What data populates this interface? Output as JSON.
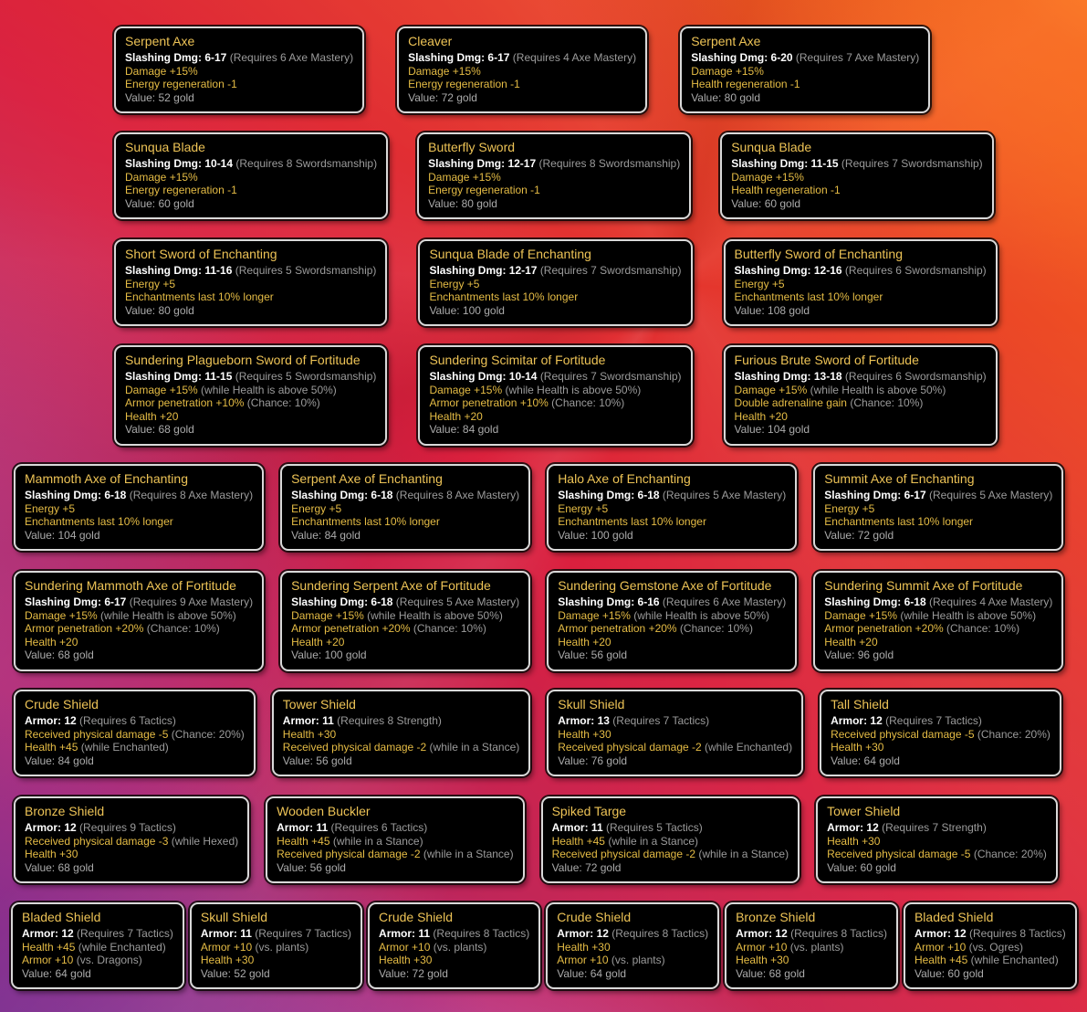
{
  "colors": {
    "item_name": "#edc356",
    "stat_text": "#ffffff",
    "requirement_text": "#9b9b9b",
    "bonus_text": "#e5bc45",
    "note_text": "#9b9b9b",
    "value_text": "#ababab",
    "card_background": "#000000",
    "card_border": "#d9d9d9",
    "bg_orange_bright": "#ff9023",
    "bg_orange": "#f8681c",
    "bg_red": "#da1f3e",
    "bg_magenta": "#c23e8e",
    "bg_purple": "#50257e"
  },
  "rows": [
    {
      "items": [
        {
          "name": "Serpent Axe",
          "stat": "Slashing Dmg: 6-17",
          "requirement": "(Requires 6 Axe Mastery)",
          "bonuses": [
            {
              "text": "Damage +15%",
              "note": ""
            },
            {
              "text": "Energy regeneration -1",
              "note": ""
            }
          ],
          "value": "Value: 52 gold"
        },
        {
          "name": "Cleaver",
          "stat": "Slashing Dmg: 6-17",
          "requirement": "(Requires 4 Axe Mastery)",
          "bonuses": [
            {
              "text": "Damage +15%",
              "note": ""
            },
            {
              "text": "Energy regeneration -1",
              "note": ""
            }
          ],
          "value": "Value: 72 gold"
        },
        {
          "name": "Serpent Axe",
          "stat": "Slashing Dmg: 6-20",
          "requirement": "(Requires 7 Axe Mastery)",
          "bonuses": [
            {
              "text": "Damage +15%",
              "note": ""
            },
            {
              "text": "Health regeneration -1",
              "note": ""
            }
          ],
          "value": "Value: 80 gold"
        }
      ]
    },
    {
      "items": [
        {
          "name": "Sunqua Blade",
          "stat": "Slashing Dmg: 10-14",
          "requirement": "(Requires 8 Swordsmanship)",
          "bonuses": [
            {
              "text": "Damage +15%",
              "note": ""
            },
            {
              "text": "Energy regeneration -1",
              "note": ""
            }
          ],
          "value": "Value: 60 gold"
        },
        {
          "name": "Butterfly Sword",
          "stat": "Slashing Dmg: 12-17",
          "requirement": "(Requires 8 Swordsmanship)",
          "bonuses": [
            {
              "text": "Damage +15%",
              "note": ""
            },
            {
              "text": "Energy regeneration -1",
              "note": ""
            }
          ],
          "value": "Value: 80 gold"
        },
        {
          "name": "Sunqua Blade",
          "stat": "Slashing Dmg: 11-15",
          "requirement": "(Requires 7 Swordsmanship)",
          "bonuses": [
            {
              "text": "Damage +15%",
              "note": ""
            },
            {
              "text": "Health regeneration -1",
              "note": ""
            }
          ],
          "value": "Value: 60 gold"
        }
      ]
    },
    {
      "items": [
        {
          "name": "Short Sword of Enchanting",
          "stat": "Slashing Dmg: 11-16",
          "requirement": "(Requires 5 Swordsmanship)",
          "bonuses": [
            {
              "text": "Energy +5",
              "note": ""
            },
            {
              "text": "Enchantments last 10% longer",
              "note": ""
            }
          ],
          "value": "Value: 80 gold"
        },
        {
          "name": "Sunqua Blade of Enchanting",
          "stat": "Slashing Dmg: 12-17",
          "requirement": "(Requires 7 Swordsmanship)",
          "bonuses": [
            {
              "text": "Energy +5",
              "note": ""
            },
            {
              "text": "Enchantments last 10% longer",
              "note": ""
            }
          ],
          "value": "Value: 100 gold"
        },
        {
          "name": "Butterfly Sword of Enchanting",
          "stat": "Slashing Dmg: 12-16",
          "requirement": "(Requires 6 Swordsmanship)",
          "bonuses": [
            {
              "text": "Energy +5",
              "note": ""
            },
            {
              "text": "Enchantments last 10% longer",
              "note": ""
            }
          ],
          "value": "Value: 108 gold"
        }
      ]
    },
    {
      "items": [
        {
          "name": "Sundering Plagueborn Sword of Fortitude",
          "stat": "Slashing Dmg: 11-15",
          "requirement": "(Requires 5 Swordsmanship)",
          "bonuses": [
            {
              "text": "Damage +15%",
              "note": "(while Health is above 50%)"
            },
            {
              "text": "Armor penetration +10%",
              "note": "(Chance: 10%)"
            },
            {
              "text": "Health +20",
              "note": ""
            }
          ],
          "value": "Value: 68 gold"
        },
        {
          "name": "Sundering Scimitar of Fortitude",
          "stat": "Slashing Dmg: 10-14",
          "requirement": "(Requires 7 Swordsmanship)",
          "bonuses": [
            {
              "text": "Damage +15%",
              "note": "(while Health is above 50%)"
            },
            {
              "text": "Armor penetration +10%",
              "note": "(Chance: 10%)"
            },
            {
              "text": "Health +20",
              "note": ""
            }
          ],
          "value": "Value: 84 gold"
        },
        {
          "name": "Furious Brute Sword of Fortitude",
          "stat": "Slashing Dmg: 13-18",
          "requirement": "(Requires 6 Swordsmanship)",
          "bonuses": [
            {
              "text": "Damage +15%",
              "note": "(while Health is above 50%)"
            },
            {
              "text": "Double adrenaline gain",
              "note": "(Chance: 10%)"
            },
            {
              "text": "Health +20",
              "note": ""
            }
          ],
          "value": "Value: 104 gold"
        }
      ]
    },
    {
      "items": [
        {
          "name": "Mammoth Axe of Enchanting",
          "stat": "Slashing Dmg: 6-18",
          "requirement": "(Requires 8 Axe Mastery)",
          "bonuses": [
            {
              "text": "Energy +5",
              "note": ""
            },
            {
              "text": "Enchantments last 10% longer",
              "note": ""
            }
          ],
          "value": "Value: 104 gold"
        },
        {
          "name": "Serpent Axe of Enchanting",
          "stat": "Slashing Dmg: 6-18",
          "requirement": "(Requires 8 Axe Mastery)",
          "bonuses": [
            {
              "text": "Energy +5",
              "note": ""
            },
            {
              "text": "Enchantments last 10% longer",
              "note": ""
            }
          ],
          "value": "Value: 84 gold"
        },
        {
          "name": "Halo Axe of Enchanting",
          "stat": "Slashing Dmg: 6-18",
          "requirement": "(Requires 5 Axe Mastery)",
          "bonuses": [
            {
              "text": "Energy +5",
              "note": ""
            },
            {
              "text": "Enchantments last 10% longer",
              "note": ""
            }
          ],
          "value": "Value: 100 gold"
        },
        {
          "name": "Summit Axe of Enchanting",
          "stat": "Slashing Dmg: 6-17",
          "requirement": "(Requires 5 Axe Mastery)",
          "bonuses": [
            {
              "text": "Energy +5",
              "note": ""
            },
            {
              "text": "Enchantments last 10% longer",
              "note": ""
            }
          ],
          "value": "Value: 72 gold"
        }
      ]
    },
    {
      "items": [
        {
          "name": "Sundering Mammoth Axe of Fortitude",
          "stat": "Slashing Dmg: 6-17",
          "requirement": "(Requires 9 Axe Mastery)",
          "bonuses": [
            {
              "text": "Damage +15%",
              "note": "(while Health is above 50%)"
            },
            {
              "text": "Armor penetration +20%",
              "note": "(Chance: 10%)"
            },
            {
              "text": "Health +20",
              "note": ""
            }
          ],
          "value": "Value: 68 gold"
        },
        {
          "name": "Sundering Serpent Axe of Fortitude",
          "stat": "Slashing Dmg: 6-18",
          "requirement": "(Requires 5 Axe Mastery)",
          "bonuses": [
            {
              "text": "Damage +15%",
              "note": "(while Health is above 50%)"
            },
            {
              "text": "Armor penetration +20%",
              "note": "(Chance: 10%)"
            },
            {
              "text": "Health +20",
              "note": ""
            }
          ],
          "value": "Value: 100 gold"
        },
        {
          "name": "Sundering Gemstone Axe of Fortitude",
          "stat": "Slashing Dmg: 6-16",
          "requirement": "(Requires 6 Axe Mastery)",
          "bonuses": [
            {
              "text": "Damage +15%",
              "note": "(while Health is above 50%)"
            },
            {
              "text": "Armor penetration +20%",
              "note": "(Chance: 10%)"
            },
            {
              "text": "Health +20",
              "note": ""
            }
          ],
          "value": "Value: 56 gold"
        },
        {
          "name": "Sundering Summit Axe of Fortitude",
          "stat": "Slashing Dmg: 6-18",
          "requirement": "(Requires 4 Axe Mastery)",
          "bonuses": [
            {
              "text": "Damage +15%",
              "note": "(while Health is above 50%)"
            },
            {
              "text": "Armor penetration +20%",
              "note": "(Chance: 10%)"
            },
            {
              "text": "Health +20",
              "note": ""
            }
          ],
          "value": "Value: 96 gold"
        }
      ]
    },
    {
      "items": [
        {
          "name": "Crude Shield",
          "stat": "Armor: 12",
          "requirement": "(Requires 6 Tactics)",
          "bonuses": [
            {
              "text": "Received physical damage -5",
              "note": "(Chance: 20%)"
            },
            {
              "text": "Health +45",
              "note": "(while Enchanted)"
            }
          ],
          "value": "Value: 84 gold"
        },
        {
          "name": "Tower Shield",
          "stat": "Armor: 11",
          "requirement": "(Requires 8 Strength)",
          "bonuses": [
            {
              "text": "Health +30",
              "note": ""
            },
            {
              "text": "Received physical damage -2",
              "note": "(while in a Stance)"
            }
          ],
          "value": "Value: 56 gold"
        },
        {
          "name": "Skull Shield",
          "stat": "Armor: 13",
          "requirement": "(Requires 7 Tactics)",
          "bonuses": [
            {
              "text": "Health +30",
              "note": ""
            },
            {
              "text": "Received physical damage -2",
              "note": "(while Enchanted)"
            }
          ],
          "value": "Value: 76 gold"
        },
        {
          "name": "Tall Shield",
          "stat": "Armor: 12",
          "requirement": "(Requires 7 Tactics)",
          "bonuses": [
            {
              "text": "Received physical damage -5",
              "note": "(Chance: 20%)"
            },
            {
              "text": "Health +30",
              "note": ""
            }
          ],
          "value": "Value: 64 gold"
        }
      ]
    },
    {
      "items": [
        {
          "name": "Bronze Shield",
          "stat": "Armor: 12",
          "requirement": "(Requires 9 Tactics)",
          "bonuses": [
            {
              "text": "Received physical damage -3",
              "note": "(while Hexed)"
            },
            {
              "text": "Health +30",
              "note": ""
            }
          ],
          "value": "Value: 68 gold"
        },
        {
          "name": "Wooden Buckler",
          "stat": "Armor: 11",
          "requirement": "(Requires 6 Tactics)",
          "bonuses": [
            {
              "text": "Health +45",
              "note": "(while in a Stance)"
            },
            {
              "text": "Received physical damage -2",
              "note": "(while in a Stance)"
            }
          ],
          "value": "Value: 56 gold"
        },
        {
          "name": "Spiked Targe",
          "stat": "Armor: 11",
          "requirement": "(Requires 5 Tactics)",
          "bonuses": [
            {
              "text": "Health +45",
              "note": "(while in a Stance)"
            },
            {
              "text": "Received physical damage -2",
              "note": "(while in a Stance)"
            }
          ],
          "value": "Value: 72 gold"
        },
        {
          "name": "Tower Shield",
          "stat": "Armor: 12",
          "requirement": "(Requires 7 Strength)",
          "bonuses": [
            {
              "text": "Health +30",
              "note": ""
            },
            {
              "text": "Received physical damage -5",
              "note": "(Chance: 20%)"
            }
          ],
          "value": "Value: 60 gold"
        }
      ]
    },
    {
      "items": [
        {
          "name": "Bladed Shield",
          "stat": "Armor: 12",
          "requirement": "(Requires 7 Tactics)",
          "bonuses": [
            {
              "text": "Health +45",
              "note": "(while Enchanted)"
            },
            {
              "text": "Armor +10",
              "note": "(vs. Dragons)"
            }
          ],
          "value": "Value: 64 gold"
        },
        {
          "name": "Skull Shield",
          "stat": "Armor: 11",
          "requirement": "(Requires 7 Tactics)",
          "bonuses": [
            {
              "text": "Armor +10",
              "note": "(vs. plants)"
            },
            {
              "text": "Health +30",
              "note": ""
            }
          ],
          "value": "Value: 52 gold"
        },
        {
          "name": "Crude Shield",
          "stat": "Armor: 11",
          "requirement": "(Requires 8 Tactics)",
          "bonuses": [
            {
              "text": "Armor +10",
              "note": "(vs. plants)"
            },
            {
              "text": "Health +30",
              "note": ""
            }
          ],
          "value": "Value: 72 gold"
        },
        {
          "name": "Crude Shield",
          "stat": "Armor: 12",
          "requirement": "(Requires 8 Tactics)",
          "bonuses": [
            {
              "text": "Health +30",
              "note": ""
            },
            {
              "text": "Armor +10",
              "note": "(vs. plants)"
            }
          ],
          "value": "Value: 64 gold"
        },
        {
          "name": "Bronze Shield",
          "stat": "Armor: 12",
          "requirement": "(Requires 8 Tactics)",
          "bonuses": [
            {
              "text": "Armor +10",
              "note": "(vs. plants)"
            },
            {
              "text": "Health +30",
              "note": ""
            }
          ],
          "value": "Value: 68 gold"
        },
        {
          "name": "Bladed Shield",
          "stat": "Armor: 12",
          "requirement": "(Requires 8 Tactics)",
          "bonuses": [
            {
              "text": "Armor +10",
              "note": "(vs. Ogres)"
            },
            {
              "text": "Health +45",
              "note": "(while Enchanted)"
            }
          ],
          "value": "Value: 60 gold"
        }
      ]
    }
  ]
}
